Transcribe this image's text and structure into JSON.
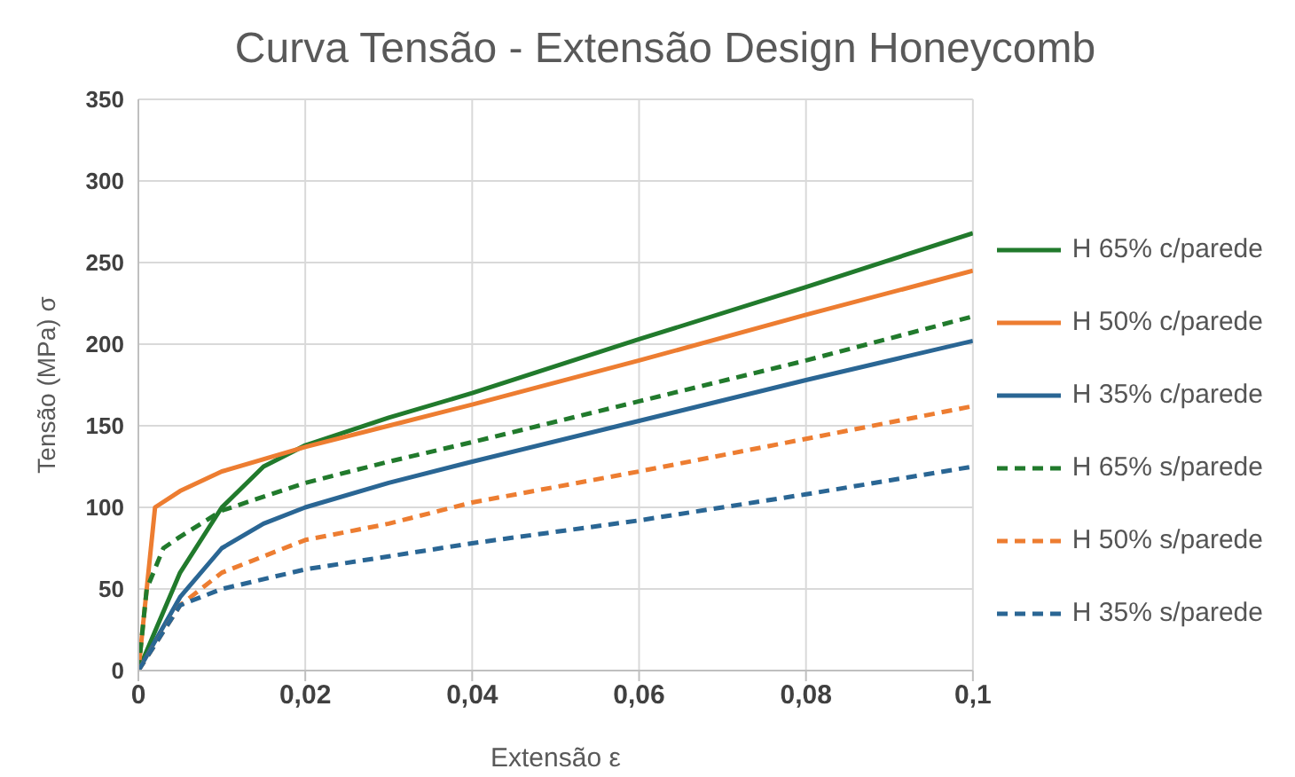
{
  "chart_data": {
    "type": "line",
    "title": "Curva Tensão - Extensão Design Honeycomb",
    "xlabel": "Extensão ε",
    "ylabel": "Tensão (MPa) σ",
    "xlim": [
      0,
      0.1
    ],
    "xticks": [
      0,
      {
        "value": 0.02,
        "label": "0,02"
      },
      {
        "value": 0.04,
        "label": "0,04"
      },
      {
        "value": 0.06,
        "label": "0,06"
      },
      {
        "value": 0.08,
        "label": "0,08"
      },
      {
        "value": 0.1,
        "label": "0,1"
      }
    ],
    "ylim": [
      0,
      350
    ],
    "yticks": [
      0,
      50,
      100,
      150,
      200,
      250,
      300,
      350
    ],
    "grid": true,
    "legend": "right",
    "marker": "none",
    "series": [
      {
        "name": "H 65% c/parede",
        "color": "#217a2c",
        "line_style": "solid",
        "x": [
          0,
          0.005,
          0.01,
          0.015,
          0.02,
          0.03,
          0.04,
          0.06,
          0.08,
          0.1
        ],
        "values": [
          0,
          60,
          100,
          125,
          138,
          155,
          170,
          203,
          235,
          268
        ]
      },
      {
        "name": "H 50% c/parede",
        "color": "#ed7d31",
        "line_style": "solid",
        "x": [
          0,
          0.002,
          0.005,
          0.01,
          0.02,
          0.03,
          0.04,
          0.06,
          0.08,
          0.1
        ],
        "values": [
          0,
          100,
          110,
          122,
          137,
          150,
          163,
          190,
          218,
          245
        ]
      },
      {
        "name": "H 35% c/parede",
        "color": "#2a6694",
        "line_style": "solid",
        "x": [
          0,
          0.005,
          0.01,
          0.015,
          0.02,
          0.03,
          0.04,
          0.06,
          0.08,
          0.1
        ],
        "values": [
          0,
          45,
          75,
          90,
          100,
          115,
          128,
          153,
          178,
          202
        ]
      },
      {
        "name": "H 65% s/parede",
        "color": "#217a2c",
        "line_style": "dashed",
        "x": [
          0,
          0.001,
          0.003,
          0.005,
          0.01,
          0.02,
          0.03,
          0.04,
          0.06,
          0.08,
          0.1
        ],
        "values": [
          0,
          50,
          75,
          82,
          98,
          115,
          128,
          140,
          165,
          190,
          217
        ]
      },
      {
        "name": "H 50% s/parede",
        "color": "#ed7d31",
        "line_style": "dashed",
        "x": [
          0,
          0.005,
          0.01,
          0.02,
          0.03,
          0.04,
          0.06,
          0.08,
          0.1
        ],
        "values": [
          0,
          40,
          60,
          80,
          90,
          103,
          122,
          142,
          162
        ]
      },
      {
        "name": "H 35% s/parede",
        "color": "#2a6694",
        "line_style": "dashed",
        "x": [
          0,
          0.005,
          0.01,
          0.02,
          0.03,
          0.04,
          0.06,
          0.08,
          0.1
        ],
        "values": [
          0,
          40,
          50,
          62,
          70,
          78,
          92,
          108,
          125
        ]
      }
    ]
  }
}
